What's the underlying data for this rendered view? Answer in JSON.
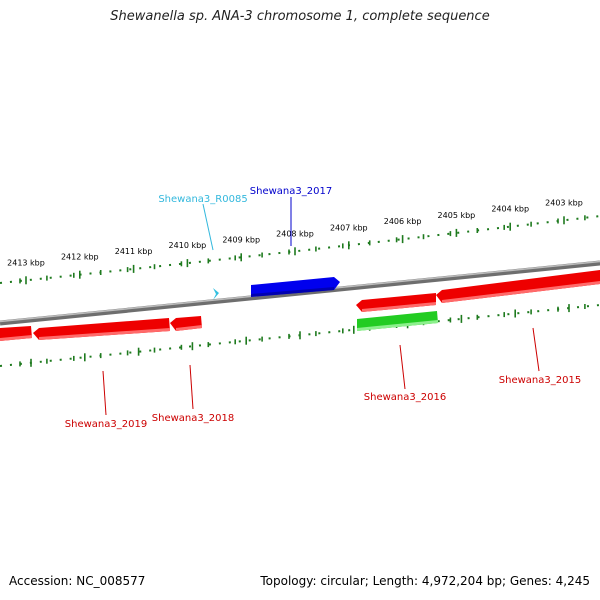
{
  "title": "Shewanella sp. ANA-3 chromosome 1, complete sequence",
  "accession": "Accession: NC_008577",
  "summary": "Topology: circular; Length: 4,972,204 bp; Genes: 4,245",
  "colors": {
    "backbone": "#808080",
    "tick": "#1e7a1e",
    "forward_gene": "#0000ee",
    "reverse_gene": "#ee0000",
    "other_gene": "#33bb33",
    "rna": "#33c0e0",
    "red_label": "#cc0000",
    "blue_label": "#0000cc",
    "cyan_label": "#33b8dd"
  },
  "ticks": [
    {
      "label": "2413 kbp"
    },
    {
      "label": "2412 kbp"
    },
    {
      "label": "2411 kbp"
    },
    {
      "label": "2410 kbp"
    },
    {
      "label": "2409 kbp"
    },
    {
      "label": "2408 kbp"
    },
    {
      "label": "2407 kbp"
    },
    {
      "label": "2406 kbp"
    },
    {
      "label": "2405 kbp"
    },
    {
      "label": "2404 kbp"
    },
    {
      "label": "2403 kbp"
    }
  ],
  "features": [
    {
      "name": "Shewana3_R0085",
      "strand": "+",
      "type": "RNA"
    },
    {
      "name": "Shewana3_2017",
      "strand": "+",
      "type": "CDS"
    },
    {
      "name": "Shewana3_2015",
      "strand": "-",
      "type": "CDS"
    },
    {
      "name": "Shewana3_2016",
      "strand": "-",
      "type": "CDS"
    },
    {
      "name": "Shewana3_2018",
      "strand": "-",
      "type": "CDS"
    },
    {
      "name": "Shewana3_2019",
      "strand": "-",
      "type": "CDS"
    }
  ]
}
